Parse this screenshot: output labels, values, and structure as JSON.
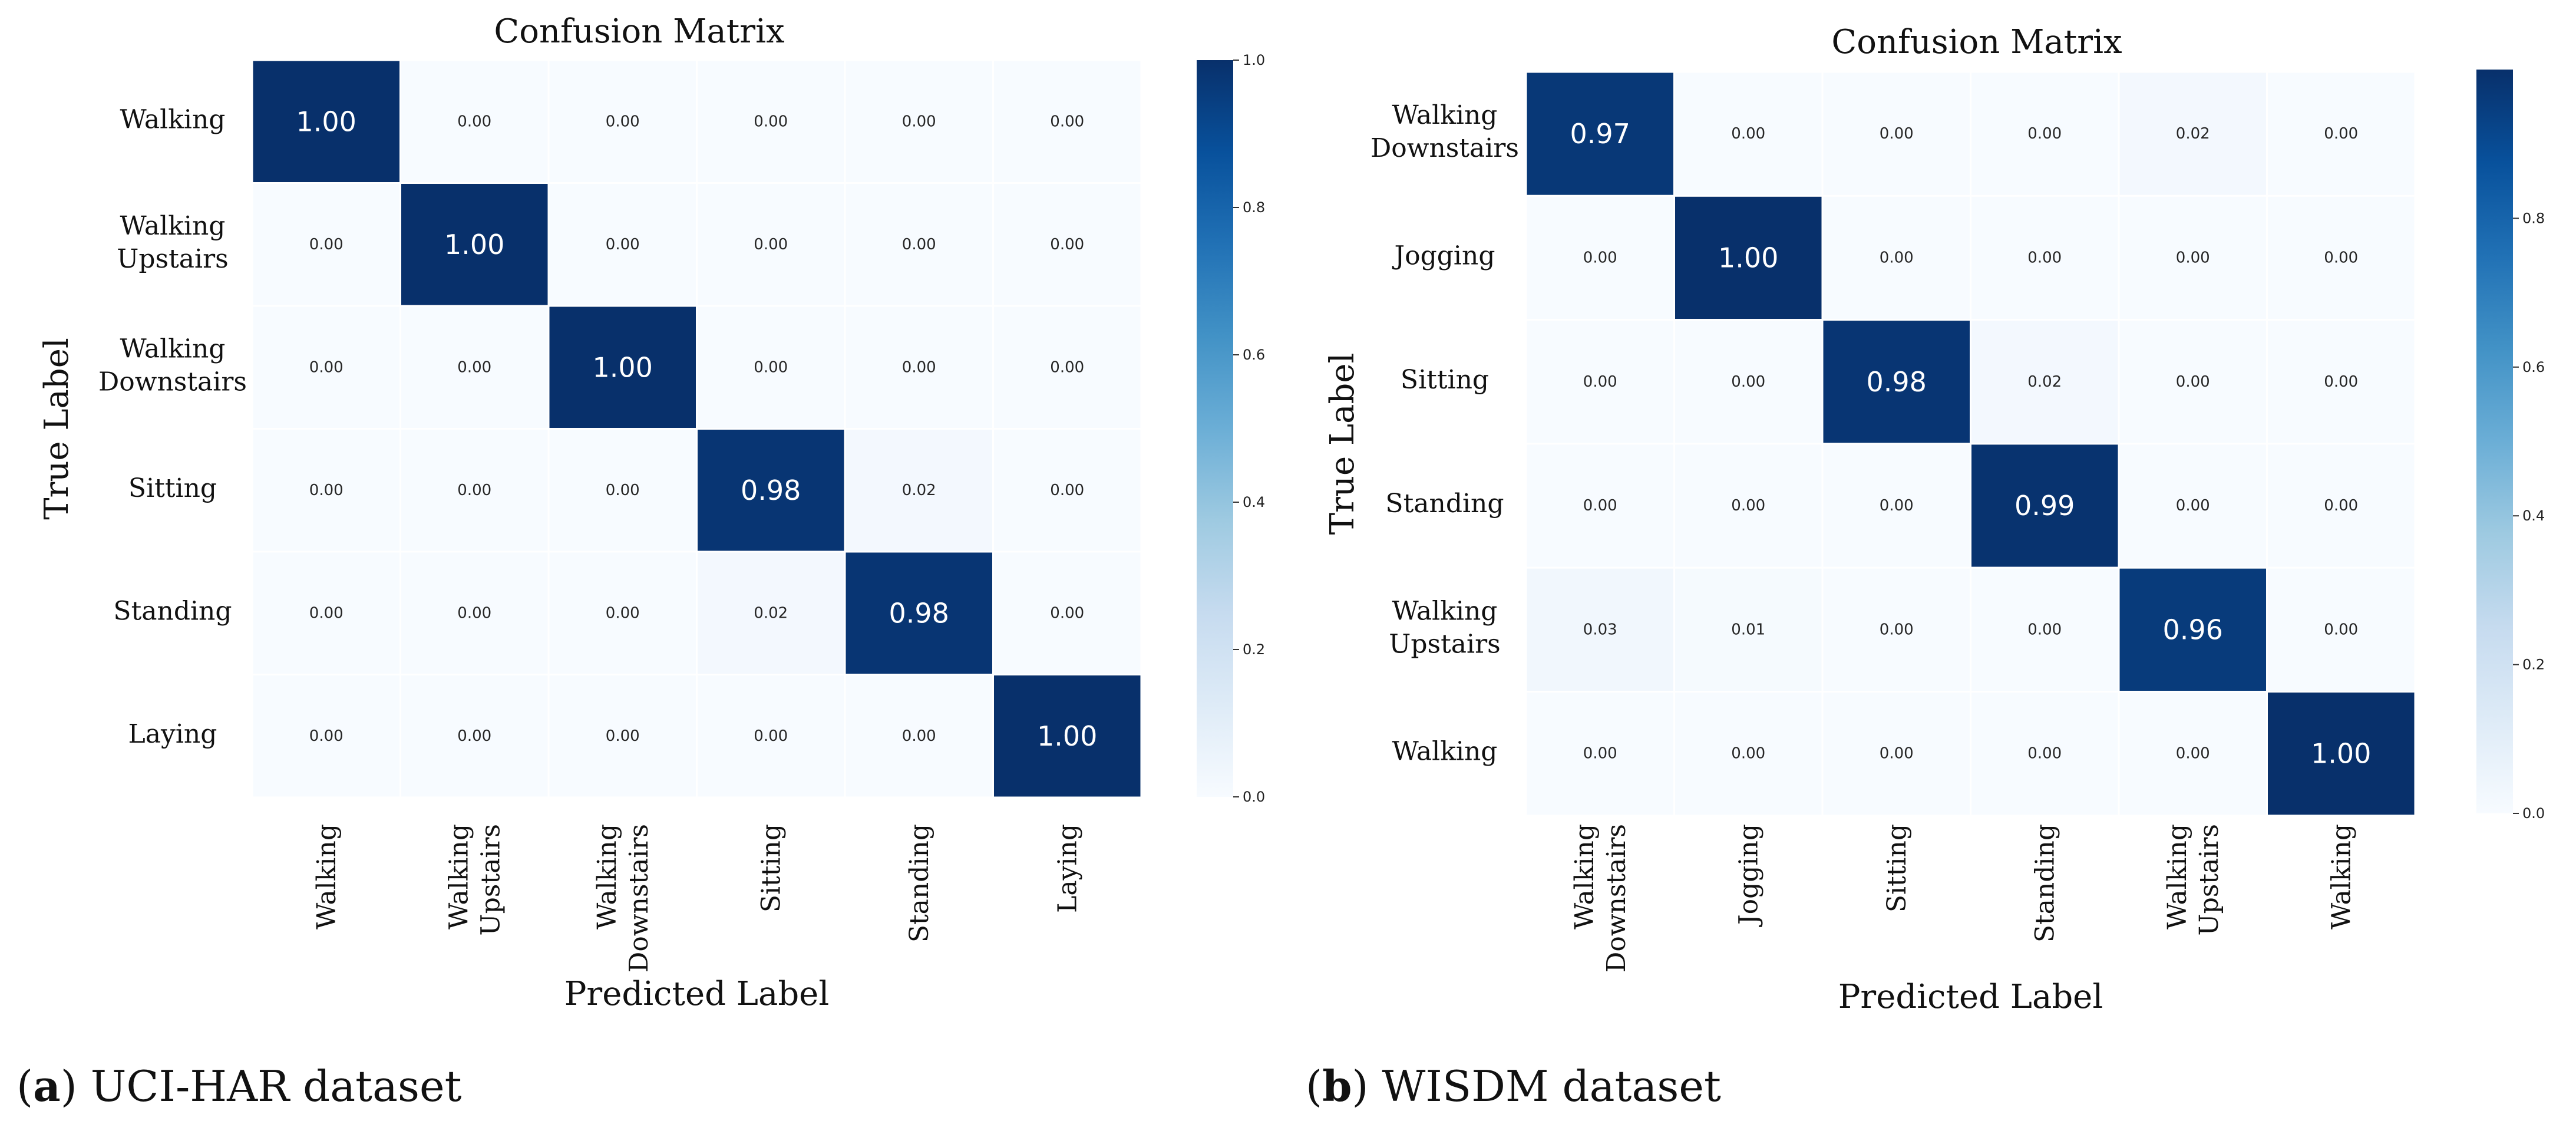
{
  "figure": {
    "caption_a_letter": "a",
    "caption_a_text": "UCI-HAR dataset",
    "caption_b_letter": "b",
    "caption_b_text": "WISDM dataset"
  },
  "colors": {
    "scale": [
      "#f7fbff",
      "#deebf7",
      "#c6dbef",
      "#9ecae1",
      "#6baed6",
      "#4292c6",
      "#2171b5",
      "#08519c",
      "#08306b"
    ],
    "dark_text": "#262626",
    "light_text": "#ffffff"
  },
  "chart_data": [
    {
      "type": "heatmap",
      "title": "Confusion Matrix",
      "xlabel": "Predicted Label",
      "ylabel": "True Label",
      "row_labels": [
        [
          "Walking"
        ],
        [
          "Walking",
          "Upstairs"
        ],
        [
          "Walking",
          "Downstairs"
        ],
        [
          "Sitting"
        ],
        [
          "Standing"
        ],
        [
          "Laying"
        ]
      ],
      "col_labels": [
        [
          "Walking"
        ],
        [
          "Walking",
          "Upstairs"
        ],
        [
          "Walking",
          "Downstairs"
        ],
        [
          "Sitting"
        ],
        [
          "Standing"
        ],
        [
          "Laying"
        ]
      ],
      "values": [
        [
          1.0,
          0.0,
          0.0,
          0.0,
          0.0,
          0.0
        ],
        [
          0.0,
          1.0,
          0.0,
          0.0,
          0.0,
          0.0
        ],
        [
          0.0,
          0.0,
          1.0,
          0.0,
          0.0,
          0.0
        ],
        [
          0.0,
          0.0,
          0.0,
          0.98,
          0.02,
          0.0
        ],
        [
          0.0,
          0.0,
          0.0,
          0.02,
          0.98,
          0.0
        ],
        [
          0.0,
          0.0,
          0.0,
          0.0,
          0.0,
          1.0
        ]
      ],
      "colorbar": {
        "vmin": 0.0,
        "vmax": 1.0,
        "ticks": [
          "0.0",
          "0.2",
          "0.4",
          "0.6",
          "0.8",
          "1.0"
        ],
        "tick_values": [
          0.0,
          0.2,
          0.4,
          0.6,
          0.8,
          1.0
        ]
      }
    },
    {
      "type": "heatmap",
      "title": "Confusion Matrix",
      "xlabel": "Predicted Label",
      "ylabel": "True Label",
      "row_labels": [
        [
          "Walking",
          "Downstairs"
        ],
        [
          "Jogging"
        ],
        [
          "Sitting"
        ],
        [
          "Standing"
        ],
        [
          "Walking",
          "Upstairs"
        ],
        [
          "Walking"
        ]
      ],
      "col_labels": [
        [
          "Walking",
          "Downstairs"
        ],
        [
          "Jogging"
        ],
        [
          "Sitting"
        ],
        [
          "Standing"
        ],
        [
          "Walking",
          "Upstairs"
        ],
        [
          "Walking"
        ]
      ],
      "values": [
        [
          0.97,
          0.0,
          0.0,
          0.0,
          0.02,
          0.0
        ],
        [
          0.0,
          1.0,
          0.0,
          0.0,
          0.0,
          0.0
        ],
        [
          0.0,
          0.0,
          0.98,
          0.02,
          0.0,
          0.0
        ],
        [
          0.0,
          0.0,
          0.0,
          0.99,
          0.0,
          0.0
        ],
        [
          0.03,
          0.01,
          0.0,
          0.0,
          0.96,
          0.0
        ],
        [
          0.0,
          0.0,
          0.0,
          0.0,
          0.0,
          1.0
        ]
      ],
      "colorbar": {
        "vmin": 0.0,
        "vmax": 1.0,
        "ticks": [
          "0.0",
          "0.2",
          "0.4",
          "0.6",
          "0.8"
        ],
        "tick_values": [
          0.0,
          0.2,
          0.4,
          0.6,
          0.8
        ]
      }
    }
  ]
}
